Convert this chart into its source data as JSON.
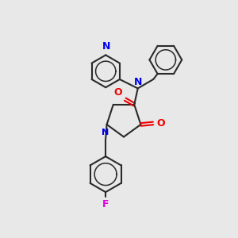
{
  "bg_color": "#e8e8e8",
  "bond_color": "#2a2a2a",
  "N_color": "#0000ee",
  "O_color": "#ee0000",
  "F_color": "#dd00dd",
  "line_width": 1.5,
  "figsize": [
    3.0,
    3.0
  ],
  "dpi": 100,
  "xlim": [
    0,
    10
  ],
  "ylim": [
    0,
    10
  ]
}
